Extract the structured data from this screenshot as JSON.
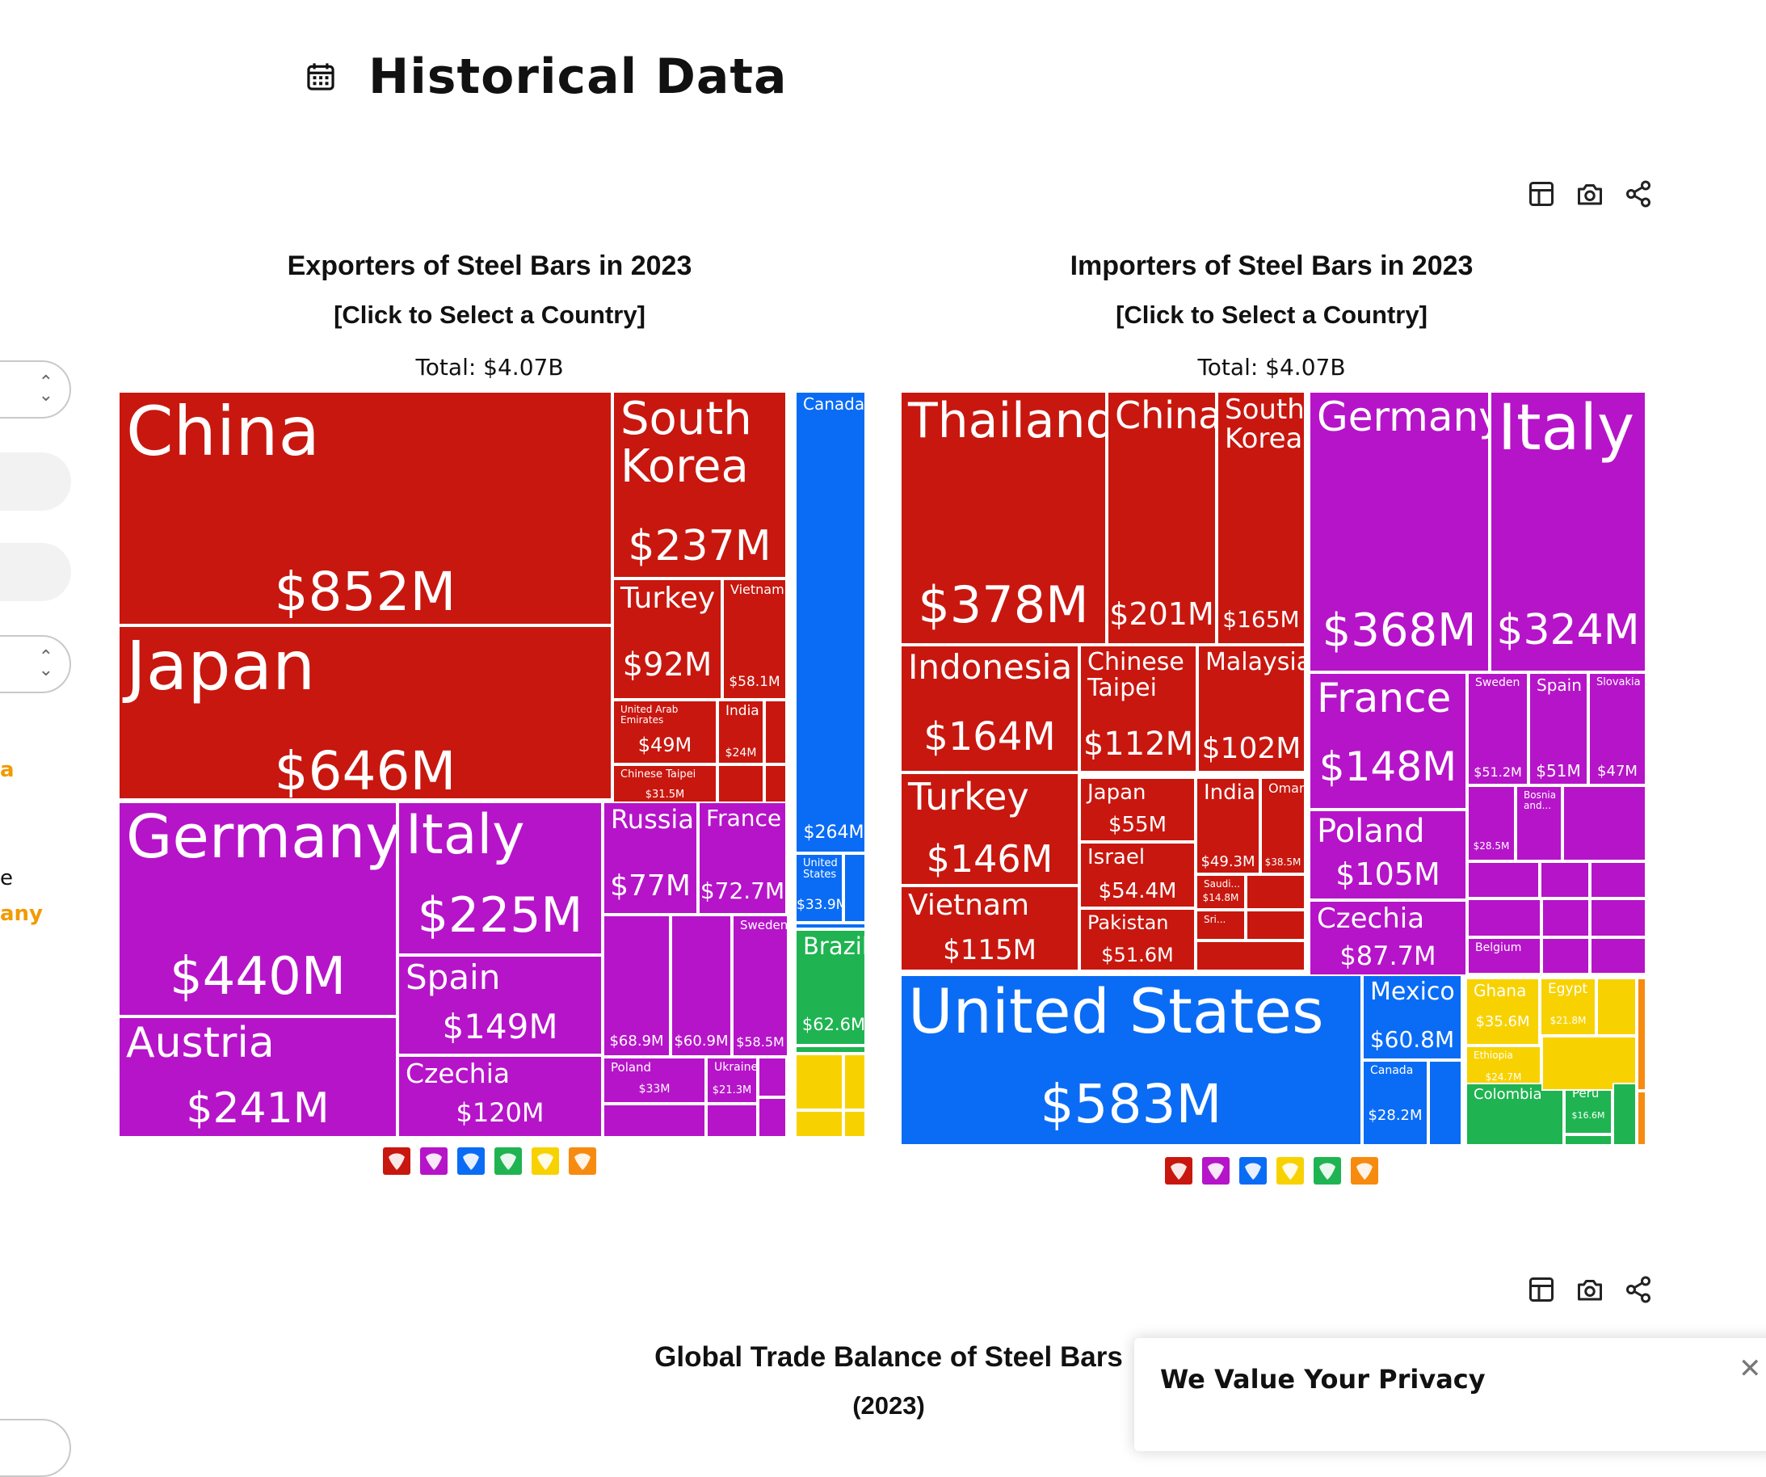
{
  "page": {
    "title": "Historical Data"
  },
  "sidebar": {
    "fragment_a": "a",
    "fragment_b": "e",
    "fragment_c": "any"
  },
  "charts_toolbar": [
    "table-icon",
    "camera-icon",
    "share-icon"
  ],
  "colors": {
    "asia": "#c8170f",
    "europe": "#b614c9",
    "north_america": "#0a6cf5",
    "south_america": "#1fb451",
    "africa": "#f8d200",
    "oceania": "#f78b0f"
  },
  "chart_data": [
    {
      "type": "treemap",
      "title": "Exporters of Steel Bars in 2023",
      "subtitle": "[Click to Select a Country]",
      "total_label": "Total: $4.07B",
      "tiles": [
        {
          "name": "China",
          "value": "$852M",
          "region": "asia"
        },
        {
          "name": "Japan",
          "value": "$646M",
          "region": "asia"
        },
        {
          "name": "South Korea",
          "value": "$237M",
          "region": "asia"
        },
        {
          "name": "Turkey",
          "value": "$92M",
          "region": "asia"
        },
        {
          "name": "Vietnam",
          "value": "$58.1M",
          "region": "asia"
        },
        {
          "name": "United Arab Emirates",
          "value": "$49M",
          "region": "asia"
        },
        {
          "name": "India",
          "value": "$24M",
          "region": "asia"
        },
        {
          "name": "Chinese Taipei",
          "value": "$31.5M",
          "region": "asia"
        },
        {
          "name": "Germany",
          "value": "$440M",
          "region": "europe"
        },
        {
          "name": "Austria",
          "value": "$241M",
          "region": "europe"
        },
        {
          "name": "Italy",
          "value": "$225M",
          "region": "europe"
        },
        {
          "name": "Spain",
          "value": "$149M",
          "region": "europe"
        },
        {
          "name": "Czechia",
          "value": "$120M",
          "region": "europe"
        },
        {
          "name": "Russia",
          "value": "$77M",
          "region": "europe"
        },
        {
          "name": "France",
          "value": "$72.7M",
          "region": "europe"
        },
        {
          "name": "",
          "value": "$68.9M",
          "region": "europe"
        },
        {
          "name": "",
          "value": "$60.9M",
          "region": "europe"
        },
        {
          "name": "Sweden",
          "value": "$58.5M",
          "region": "europe"
        },
        {
          "name": "Poland",
          "value": "$33M",
          "region": "europe"
        },
        {
          "name": "Ukraine",
          "value": "$21.3M",
          "region": "europe"
        },
        {
          "name": "Canada",
          "value": "$264M",
          "region": "north_america"
        },
        {
          "name": "United States",
          "value": "$33.9M",
          "region": "north_america"
        },
        {
          "name": "Brazil",
          "value": "$62.6M",
          "region": "south_america"
        }
      ],
      "legend": [
        "asia",
        "europe",
        "north_america",
        "south_america",
        "africa",
        "oceania"
      ]
    },
    {
      "type": "treemap",
      "title": "Importers of Steel Bars in 2023",
      "subtitle": "[Click to Select a Country]",
      "total_label": "Total: $4.07B",
      "tiles": [
        {
          "name": "Thailand",
          "value": "$378M",
          "region": "asia"
        },
        {
          "name": "China",
          "value": "$201M",
          "region": "asia"
        },
        {
          "name": "South Korea",
          "value": "$165M",
          "region": "asia"
        },
        {
          "name": "Indonesia",
          "value": "$164M",
          "region": "asia"
        },
        {
          "name": "Chinese Taipei",
          "value": "$112M",
          "region": "asia"
        },
        {
          "name": "Malaysia",
          "value": "$102M",
          "region": "asia"
        },
        {
          "name": "Turkey",
          "value": "$146M",
          "region": "asia"
        },
        {
          "name": "Japan",
          "value": "$55M",
          "region": "asia"
        },
        {
          "name": "India",
          "value": "$49.3M",
          "region": "asia"
        },
        {
          "name": "Oman",
          "value": "$38.5M",
          "region": "asia"
        },
        {
          "name": "Israel",
          "value": "$54.4M",
          "region": "asia"
        },
        {
          "name": "Saudi...",
          "value": "$14.8M",
          "region": "asia"
        },
        {
          "name": "Vietnam",
          "value": "$115M",
          "region": "asia"
        },
        {
          "name": "Pakistan",
          "value": "$51.6M",
          "region": "asia"
        },
        {
          "name": "Sri...",
          "value": "",
          "region": "asia"
        },
        {
          "name": "Germany",
          "value": "$368M",
          "region": "europe"
        },
        {
          "name": "Italy",
          "value": "$324M",
          "region": "europe"
        },
        {
          "name": "France",
          "value": "$148M",
          "region": "europe"
        },
        {
          "name": "Sweden",
          "value": "$51.2M",
          "region": "europe"
        },
        {
          "name": "Spain",
          "value": "$51M",
          "region": "europe"
        },
        {
          "name": "Slovakia",
          "value": "$47M",
          "region": "europe"
        },
        {
          "name": "Poland",
          "value": "$105M",
          "region": "europe"
        },
        {
          "name": "",
          "value": "$28.5M",
          "region": "europe"
        },
        {
          "name": "Bosnia and...",
          "value": "",
          "region": "europe"
        },
        {
          "name": "Czechia",
          "value": "$87.7M",
          "region": "europe"
        },
        {
          "name": "Belgium",
          "value": "",
          "region": "europe"
        },
        {
          "name": "United States",
          "value": "$583M",
          "region": "north_america"
        },
        {
          "name": "Mexico",
          "value": "$60.8M",
          "region": "north_america"
        },
        {
          "name": "Canada",
          "value": "$28.2M",
          "region": "north_america"
        },
        {
          "name": "Ghana",
          "value": "$35.6M",
          "region": "africa"
        },
        {
          "name": "Egypt",
          "value": "$21.8M",
          "region": "africa"
        },
        {
          "name": "Ethiopia",
          "value": "$24.7M",
          "region": "africa"
        },
        {
          "name": "Peru",
          "value": "$16.6M",
          "region": "south_america"
        },
        {
          "name": "Colombia",
          "value": "",
          "region": "south_america"
        }
      ],
      "legend": [
        "asia",
        "europe",
        "north_america",
        "africa",
        "south_america",
        "oceania"
      ]
    }
  ],
  "balance": {
    "title": "Global Trade Balance of Steel Bars",
    "subtitle": "(2023)"
  },
  "privacy": {
    "title": "We Value Your Privacy"
  }
}
